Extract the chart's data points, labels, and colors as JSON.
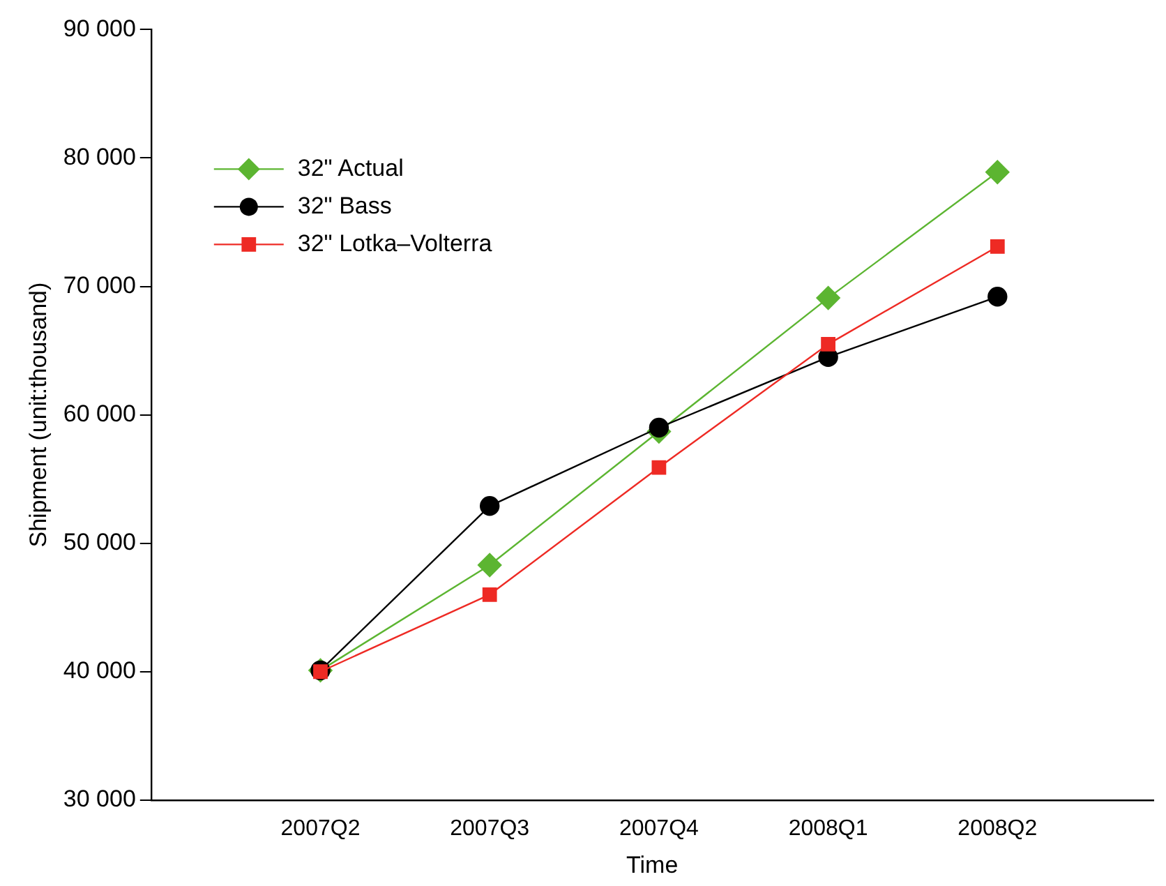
{
  "chart_data": {
    "type": "line",
    "xlabel": "Time",
    "ylabel": "Shipment (unit:thousand)",
    "categories": [
      "2007Q2",
      "2007Q3",
      "2007Q4",
      "2008Q1",
      "2008Q2"
    ],
    "series": [
      {
        "name": "32\" Actual",
        "color": "#5cb531",
        "marker": "diamond",
        "values": [
          40100,
          48300,
          58700,
          69100,
          78900
        ]
      },
      {
        "name": "32\" Bass",
        "color": "#000000",
        "marker": "circle",
        "values": [
          40100,
          52900,
          59000,
          64500,
          69200
        ]
      },
      {
        "name": "32\" Lotka–Volterra",
        "color": "#ee2a24",
        "marker": "square",
        "values": [
          40000,
          46000,
          55900,
          65500,
          73100
        ]
      }
    ],
    "ylim": [
      30000,
      90000
    ],
    "yticks": [
      {
        "value": 30000,
        "label": "30 000"
      },
      {
        "value": 40000,
        "label": "40 000"
      },
      {
        "value": 50000,
        "label": "50 000"
      },
      {
        "value": 60000,
        "label": "60 000"
      },
      {
        "value": 70000,
        "label": "70 000"
      },
      {
        "value": 80000,
        "label": "80 000"
      },
      {
        "value": 90000,
        "label": "90 000"
      }
    ],
    "grid": false,
    "legend": "top left",
    "line_style": "solid"
  }
}
